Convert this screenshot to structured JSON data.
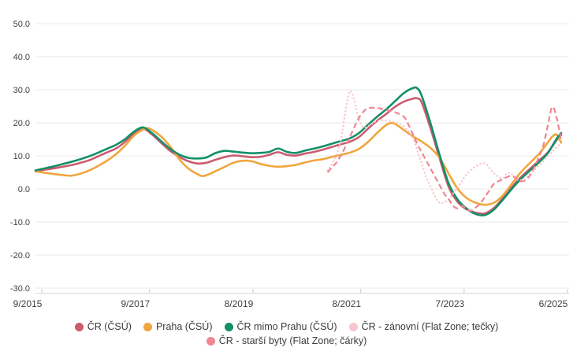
{
  "chart_data": {
    "type": "line",
    "title": "",
    "legend_position": "bottom",
    "grid": true,
    "y_axis": {
      "min": -30,
      "max": 50,
      "tick_values": [
        50,
        40,
        30,
        20,
        10,
        0,
        -10,
        -20,
        -30
      ],
      "tick_labels": [
        "50.0",
        "40.0",
        "30.0",
        "20.0",
        "10.0",
        "0.0",
        "-10.0",
        "-20.0",
        "-30.0"
      ]
    },
    "x_axis": {
      "tick_labels": [
        "9/2015",
        "9/2017",
        "8/2019",
        "8/2021",
        "7/2023",
        "6/2025"
      ],
      "tick_months": [
        0,
        24,
        47,
        71,
        94,
        117
      ],
      "month_range": [
        0,
        117
      ]
    },
    "series": [
      {
        "name": "ČR (ČSÚ)",
        "color": "#cc5b6f",
        "style": "solid",
        "points": [
          [
            0,
            5.3
          ],
          [
            2,
            5.8
          ],
          [
            4,
            6.2
          ],
          [
            6,
            6.7
          ],
          [
            8,
            7.2
          ],
          [
            10,
            7.9
          ],
          [
            12,
            8.7
          ],
          [
            14,
            9.9
          ],
          [
            16,
            11.1
          ],
          [
            18,
            12.3
          ],
          [
            20,
            14.3
          ],
          [
            22,
            16.9
          ],
          [
            24,
            18.2
          ],
          [
            26,
            16.4
          ],
          [
            28,
            13.9
          ],
          [
            30,
            11.5
          ],
          [
            32,
            9.7
          ],
          [
            34,
            8.4
          ],
          [
            36,
            7.7
          ],
          [
            38,
            7.9
          ],
          [
            40,
            8.8
          ],
          [
            42,
            9.6
          ],
          [
            44,
            10.1
          ],
          [
            46,
            9.9
          ],
          [
            48,
            9.6
          ],
          [
            50,
            9.7
          ],
          [
            52,
            10.3
          ],
          [
            54,
            11.1
          ],
          [
            56,
            10.3
          ],
          [
            58,
            10.1
          ],
          [
            60,
            10.7
          ],
          [
            62,
            11.2
          ],
          [
            64,
            11.9
          ],
          [
            66,
            12.7
          ],
          [
            68,
            13.5
          ],
          [
            70,
            14.3
          ],
          [
            72,
            15.7
          ],
          [
            74,
            18.2
          ],
          [
            76,
            20.6
          ],
          [
            78,
            22.6
          ],
          [
            80,
            24.8
          ],
          [
            82,
            26.4
          ],
          [
            84,
            27.3
          ],
          [
            85,
            27.4
          ],
          [
            86,
            26.0
          ],
          [
            88,
            18.0
          ],
          [
            90,
            9.0
          ],
          [
            92,
            0.5
          ],
          [
            94,
            -4.0
          ],
          [
            96,
            -6.2
          ],
          [
            98,
            -7.2
          ],
          [
            100,
            -7.4
          ],
          [
            102,
            -5.8
          ],
          [
            104,
            -2.8
          ],
          [
            106,
            0.5
          ],
          [
            108,
            3.5
          ],
          [
            110,
            6.0
          ],
          [
            112,
            8.5
          ],
          [
            114,
            11.0
          ],
          [
            116,
            14.8
          ],
          [
            117,
            16.3
          ]
        ]
      },
      {
        "name": "Praha (ČSÚ)",
        "color": "#f0a63e",
        "style": "solid",
        "points": [
          [
            0,
            5.3
          ],
          [
            2,
            4.9
          ],
          [
            4,
            4.5
          ],
          [
            6,
            4.2
          ],
          [
            8,
            4.0
          ],
          [
            10,
            4.6
          ],
          [
            12,
            5.6
          ],
          [
            14,
            7.0
          ],
          [
            16,
            8.6
          ],
          [
            18,
            10.6
          ],
          [
            20,
            13.2
          ],
          [
            22,
            16.2
          ],
          [
            24,
            18.0
          ],
          [
            25,
            18.4
          ],
          [
            26,
            17.8
          ],
          [
            28,
            15.8
          ],
          [
            30,
            12.8
          ],
          [
            32,
            9.0
          ],
          [
            34,
            6.2
          ],
          [
            36,
            4.5
          ],
          [
            37,
            3.9
          ],
          [
            38,
            4.1
          ],
          [
            40,
            5.3
          ],
          [
            42,
            6.6
          ],
          [
            44,
            7.9
          ],
          [
            46,
            8.5
          ],
          [
            48,
            8.4
          ],
          [
            50,
            7.6
          ],
          [
            52,
            7.0
          ],
          [
            54,
            6.7
          ],
          [
            56,
            6.9
          ],
          [
            58,
            7.3
          ],
          [
            60,
            8.0
          ],
          [
            62,
            8.6
          ],
          [
            64,
            9.0
          ],
          [
            66,
            9.7
          ],
          [
            68,
            10.3
          ],
          [
            70,
            11.0
          ],
          [
            72,
            12.1
          ],
          [
            74,
            14.2
          ],
          [
            76,
            16.9
          ],
          [
            78,
            19.3
          ],
          [
            79,
            19.9
          ],
          [
            80,
            19.7
          ],
          [
            82,
            17.8
          ],
          [
            84,
            15.9
          ],
          [
            86,
            14.3
          ],
          [
            88,
            12.3
          ],
          [
            90,
            9.3
          ],
          [
            92,
            4.5
          ],
          [
            94,
            0.0
          ],
          [
            96,
            -2.8
          ],
          [
            98,
            -4.2
          ],
          [
            100,
            -4.8
          ],
          [
            102,
            -4.2
          ],
          [
            104,
            -2.0
          ],
          [
            106,
            1.5
          ],
          [
            108,
            5.0
          ],
          [
            110,
            7.8
          ],
          [
            112,
            10.5
          ],
          [
            114,
            14.0
          ],
          [
            115,
            15.8
          ],
          [
            116,
            16.4
          ],
          [
            117,
            14.0
          ]
        ]
      },
      {
        "name": "ČR mimo Prahu (ČSÚ)",
        "color": "#128f68",
        "style": "solid",
        "points": [
          [
            0,
            5.6
          ],
          [
            2,
            6.2
          ],
          [
            4,
            6.8
          ],
          [
            6,
            7.5
          ],
          [
            8,
            8.2
          ],
          [
            10,
            9.0
          ],
          [
            12,
            9.9
          ],
          [
            14,
            11.0
          ],
          [
            16,
            12.2
          ],
          [
            18,
            13.4
          ],
          [
            20,
            15.1
          ],
          [
            22,
            17.4
          ],
          [
            24,
            18.6
          ],
          [
            26,
            16.8
          ],
          [
            28,
            14.4
          ],
          [
            30,
            12.1
          ],
          [
            32,
            10.4
          ],
          [
            34,
            9.4
          ],
          [
            36,
            9.2
          ],
          [
            38,
            9.5
          ],
          [
            40,
            10.8
          ],
          [
            42,
            11.5
          ],
          [
            44,
            11.3
          ],
          [
            46,
            11.0
          ],
          [
            48,
            10.8
          ],
          [
            50,
            10.9
          ],
          [
            52,
            11.2
          ],
          [
            54,
            12.2
          ],
          [
            56,
            11.2
          ],
          [
            58,
            10.9
          ],
          [
            60,
            11.6
          ],
          [
            62,
            12.2
          ],
          [
            64,
            12.9
          ],
          [
            66,
            13.7
          ],
          [
            68,
            14.5
          ],
          [
            70,
            15.3
          ],
          [
            72,
            16.9
          ],
          [
            74,
            19.4
          ],
          [
            76,
            21.8
          ],
          [
            78,
            24.0
          ],
          [
            80,
            26.5
          ],
          [
            82,
            29.0
          ],
          [
            84,
            30.5
          ],
          [
            85,
            30.4
          ],
          [
            86,
            28.0
          ],
          [
            88,
            19.5
          ],
          [
            90,
            10.0
          ],
          [
            92,
            1.5
          ],
          [
            94,
            -3.3
          ],
          [
            96,
            -6.0
          ],
          [
            98,
            -7.6
          ],
          [
            100,
            -7.9
          ],
          [
            102,
            -6.3
          ],
          [
            104,
            -3.3
          ],
          [
            106,
            0.0
          ],
          [
            108,
            3.0
          ],
          [
            110,
            5.5
          ],
          [
            112,
            8.0
          ],
          [
            114,
            10.8
          ],
          [
            116,
            15.2
          ],
          [
            117,
            16.9
          ]
        ]
      },
      {
        "name": "ČR - zánovní (Flat Zone; tečky)",
        "color": "#f8c5cd",
        "style": "dotted",
        "points": [
          [
            65,
            5.5
          ],
          [
            66,
            7.5
          ],
          [
            67,
            10.5
          ],
          [
            68,
            15.0
          ],
          [
            69,
            23.5
          ],
          [
            70,
            29.6
          ],
          [
            71,
            26.5
          ],
          [
            72,
            21.0
          ],
          [
            73,
            18.6
          ],
          [
            74,
            19.0
          ],
          [
            75,
            19.8
          ],
          [
            76,
            20.6
          ],
          [
            78,
            20.7
          ],
          [
            80,
            20.2
          ],
          [
            82,
            18.8
          ],
          [
            84,
            15.5
          ],
          [
            85,
            11.5
          ],
          [
            86,
            7.5
          ],
          [
            87,
            3.5
          ],
          [
            88,
            0.5
          ],
          [
            89,
            -2.5
          ],
          [
            90,
            -4.3
          ],
          [
            91,
            -4.0
          ],
          [
            92,
            -3.0
          ],
          [
            94,
            0.5
          ],
          [
            96,
            4.5
          ],
          [
            98,
            6.8
          ],
          [
            100,
            7.7
          ],
          [
            102,
            4.8
          ],
          [
            104,
            3.2
          ],
          [
            105,
            4.8
          ],
          [
            106,
            4.4
          ],
          [
            107,
            3.0
          ],
          [
            108,
            2.6
          ],
          [
            110,
            4.5
          ],
          [
            112,
            7.0
          ],
          [
            114,
            9.8
          ],
          [
            116,
            12.6
          ],
          [
            117,
            13.8
          ]
        ]
      },
      {
        "name": "ČR - starší byty (Flat Zone; čárky)",
        "color": "#f08593",
        "style": "dashed",
        "points": [
          [
            65,
            5.0
          ],
          [
            66,
            6.5
          ],
          [
            67,
            8.0
          ],
          [
            68,
            10.2
          ],
          [
            69,
            12.8
          ],
          [
            70,
            15.8
          ],
          [
            71,
            18.8
          ],
          [
            72,
            21.5
          ],
          [
            73,
            23.4
          ],
          [
            74,
            24.4
          ],
          [
            76,
            24.5
          ],
          [
            78,
            23.9
          ],
          [
            80,
            23.2
          ],
          [
            82,
            21.8
          ],
          [
            83,
            19.5
          ],
          [
            84,
            16.5
          ],
          [
            85,
            13.5
          ],
          [
            86,
            11.0
          ],
          [
            87,
            8.5
          ],
          [
            88,
            6.0
          ],
          [
            89,
            3.5
          ],
          [
            90,
            1.0
          ],
          [
            91,
            -1.5
          ],
          [
            92,
            -3.2
          ],
          [
            93,
            -5.2
          ],
          [
            94,
            -5.9
          ],
          [
            95,
            -5.1
          ],
          [
            96,
            -6.2
          ],
          [
            97,
            -6.6
          ],
          [
            98,
            -5.6
          ],
          [
            99,
            -4.4
          ],
          [
            100,
            -2.5
          ],
          [
            101,
            -0.5
          ],
          [
            102,
            1.5
          ],
          [
            103,
            2.3
          ],
          [
            104,
            3.0
          ],
          [
            105,
            3.6
          ],
          [
            106,
            4.0
          ],
          [
            107,
            3.1
          ],
          [
            108,
            2.3
          ],
          [
            109,
            2.6
          ],
          [
            110,
            4.0
          ],
          [
            111,
            6.5
          ],
          [
            112,
            9.5
          ],
          [
            113,
            13.0
          ],
          [
            114,
            19.0
          ],
          [
            115,
            24.8
          ],
          [
            116,
            21.5
          ],
          [
            117,
            14.5
          ]
        ]
      }
    ]
  }
}
